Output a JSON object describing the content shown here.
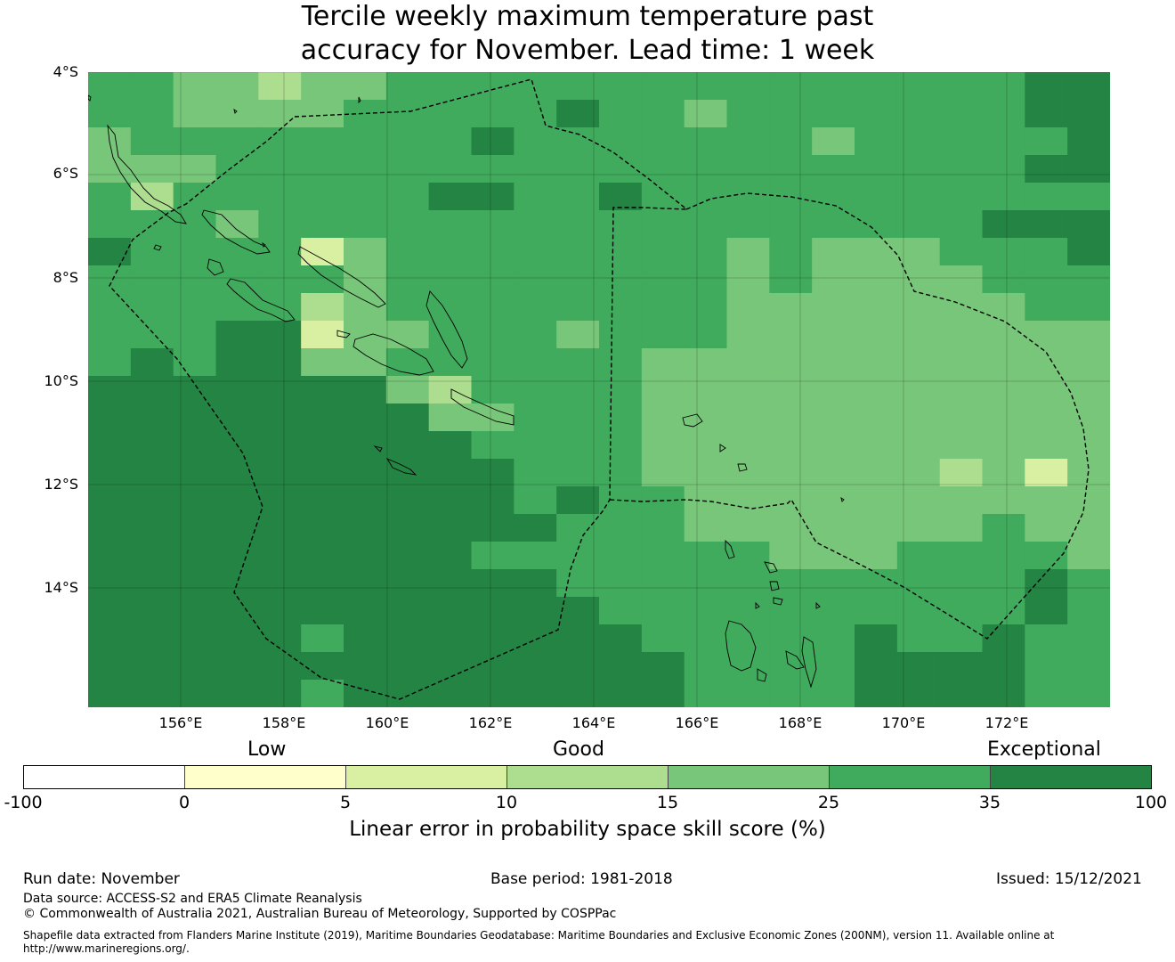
{
  "title": {
    "line1": "Tercile weekly maximum temperature past",
    "line2": "accuracy for November. Lead time: 1 week"
  },
  "map": {
    "lat_labels": [
      "4°S",
      "6°S",
      "8°S",
      "10°S",
      "12°S",
      "14°S"
    ],
    "lon_labels": [
      "156°E",
      "158°E",
      "160°E",
      "162°E",
      "164°E",
      "166°E",
      "168°E",
      "170°E",
      "172°E"
    ],
    "colors": {
      "c0": "#ffffff",
      "c1": "#ffffcc",
      "c2": "#d9f0a3",
      "c3": "#addd8e",
      "c4": "#78c679",
      "c5": "#41ab5d",
      "c6": "#238443"
    },
    "grid_cells_skill_class": [
      [
        5,
        5,
        4,
        4,
        3,
        4,
        4,
        5,
        5,
        5,
        5,
        5,
        5,
        5,
        5,
        5,
        5,
        5,
        5,
        5,
        5,
        5,
        6,
        6
      ],
      [
        5,
        5,
        4,
        4,
        4,
        4,
        5,
        5,
        5,
        5,
        5,
        6,
        5,
        5,
        4,
        5,
        5,
        5,
        5,
        5,
        5,
        5,
        6,
        6
      ],
      [
        4,
        5,
        5,
        5,
        5,
        5,
        5,
        5,
        5,
        6,
        5,
        5,
        5,
        5,
        5,
        5,
        5,
        4,
        5,
        5,
        5,
        5,
        5,
        6
      ],
      [
        4,
        4,
        4,
        5,
        5,
        5,
        5,
        5,
        5,
        5,
        5,
        5,
        5,
        5,
        5,
        5,
        5,
        5,
        5,
        5,
        5,
        5,
        6,
        6
      ],
      [
        5,
        3,
        5,
        5,
        5,
        5,
        5,
        5,
        6,
        6,
        5,
        5,
        6,
        5,
        5,
        5,
        5,
        5,
        5,
        5,
        5,
        5,
        5,
        5
      ],
      [
        5,
        5,
        5,
        4,
        5,
        5,
        5,
        5,
        5,
        5,
        5,
        5,
        5,
        5,
        5,
        5,
        5,
        5,
        5,
        5,
        5,
        6,
        6,
        6
      ],
      [
        6,
        5,
        5,
        5,
        5,
        2,
        4,
        5,
        5,
        5,
        5,
        5,
        5,
        5,
        5,
        4,
        5,
        4,
        4,
        4,
        5,
        5,
        5,
        6
      ],
      [
        5,
        5,
        5,
        5,
        5,
        5,
        4,
        5,
        5,
        5,
        5,
        5,
        5,
        5,
        5,
        4,
        5,
        4,
        4,
        4,
        4,
        5,
        5,
        5
      ],
      [
        5,
        5,
        5,
        5,
        5,
        3,
        4,
        5,
        5,
        5,
        5,
        5,
        5,
        5,
        5,
        4,
        4,
        4,
        4,
        4,
        4,
        4,
        5,
        5
      ],
      [
        5,
        5,
        5,
        6,
        6,
        2,
        4,
        4,
        5,
        5,
        5,
        4,
        5,
        5,
        5,
        4,
        4,
        4,
        4,
        4,
        4,
        4,
        4,
        4
      ],
      [
        5,
        6,
        5,
        6,
        6,
        4,
        4,
        5,
        5,
        5,
        5,
        5,
        5,
        4,
        4,
        4,
        4,
        4,
        4,
        4,
        4,
        4,
        4,
        4
      ],
      [
        6,
        6,
        6,
        6,
        6,
        6,
        6,
        4,
        3,
        5,
        5,
        5,
        5,
        4,
        4,
        4,
        4,
        4,
        4,
        4,
        4,
        4,
        4,
        4
      ],
      [
        6,
        6,
        6,
        6,
        6,
        6,
        6,
        6,
        4,
        4,
        5,
        5,
        5,
        4,
        4,
        4,
        4,
        4,
        4,
        4,
        4,
        4,
        4,
        4
      ],
      [
        6,
        6,
        6,
        6,
        6,
        6,
        6,
        6,
        6,
        5,
        5,
        5,
        5,
        4,
        4,
        4,
        4,
        4,
        4,
        4,
        4,
        4,
        4,
        4
      ],
      [
        6,
        6,
        6,
        6,
        6,
        6,
        6,
        6,
        6,
        6,
        5,
        5,
        5,
        4,
        4,
        4,
        4,
        4,
        4,
        4,
        3,
        4,
        2,
        4
      ],
      [
        6,
        6,
        6,
        6,
        6,
        6,
        6,
        6,
        6,
        6,
        5,
        6,
        5,
        5,
        4,
        4,
        4,
        4,
        4,
        4,
        4,
        4,
        4,
        4
      ],
      [
        6,
        6,
        6,
        6,
        6,
        6,
        6,
        6,
        6,
        6,
        6,
        5,
        5,
        5,
        4,
        4,
        4,
        4,
        4,
        4,
        4,
        5,
        4,
        4
      ],
      [
        6,
        6,
        6,
        6,
        6,
        6,
        6,
        6,
        6,
        5,
        5,
        5,
        5,
        5,
        5,
        5,
        4,
        4,
        4,
        5,
        5,
        5,
        5,
        4
      ],
      [
        6,
        6,
        6,
        6,
        6,
        6,
        6,
        6,
        6,
        6,
        6,
        5,
        5,
        5,
        5,
        5,
        5,
        5,
        5,
        5,
        5,
        5,
        6,
        5
      ],
      [
        6,
        6,
        6,
        6,
        6,
        6,
        6,
        6,
        6,
        6,
        6,
        6,
        5,
        5,
        5,
        5,
        5,
        5,
        5,
        5,
        5,
        5,
        6,
        5
      ],
      [
        6,
        6,
        6,
        6,
        6,
        5,
        6,
        6,
        6,
        6,
        6,
        6,
        6,
        5,
        5,
        5,
        5,
        5,
        6,
        5,
        5,
        6,
        5,
        5
      ],
      [
        6,
        6,
        6,
        6,
        6,
        6,
        6,
        6,
        6,
        6,
        6,
        6,
        6,
        6,
        5,
        5,
        5,
        5,
        6,
        6,
        6,
        6,
        5,
        5
      ],
      [
        6,
        6,
        6,
        6,
        6,
        5,
        6,
        6,
        6,
        6,
        6,
        6,
        6,
        6,
        5,
        5,
        5,
        5,
        6,
        6,
        6,
        6,
        5,
        5
      ]
    ]
  },
  "colorbar": {
    "category_labels": [
      "Low",
      "Good",
      "Exceptional"
    ],
    "tick_labels": [
      "-100",
      "0",
      "5",
      "10",
      "15",
      "25",
      "35",
      "100"
    ],
    "segment_colors": [
      "#ffffff",
      "#ffffcc",
      "#d9f0a3",
      "#addd8e",
      "#78c679",
      "#41ab5d",
      "#238443"
    ],
    "title": "Linear error in probability space skill score (%)"
  },
  "footer": {
    "run_date": "Run date: November",
    "base_period": "Base period: 1981-2018",
    "issued": "Issued: 15/12/2021",
    "data_source": "Data source: ACCESS-S2 and ERA5 Climate Reanalysis",
    "copyright": "© Commonwealth of Australia 2021, Australian Bureau of Meteorology, Supported by COSPPac",
    "shapefile": "Shapefile data extracted from Flanders Marine Institute (2019), Maritime Boundaries Geodatabase: Maritime Boundaries and Exclusive Economic Zones (200NM), version 11. Available online at http://www.marineregions.org/."
  }
}
